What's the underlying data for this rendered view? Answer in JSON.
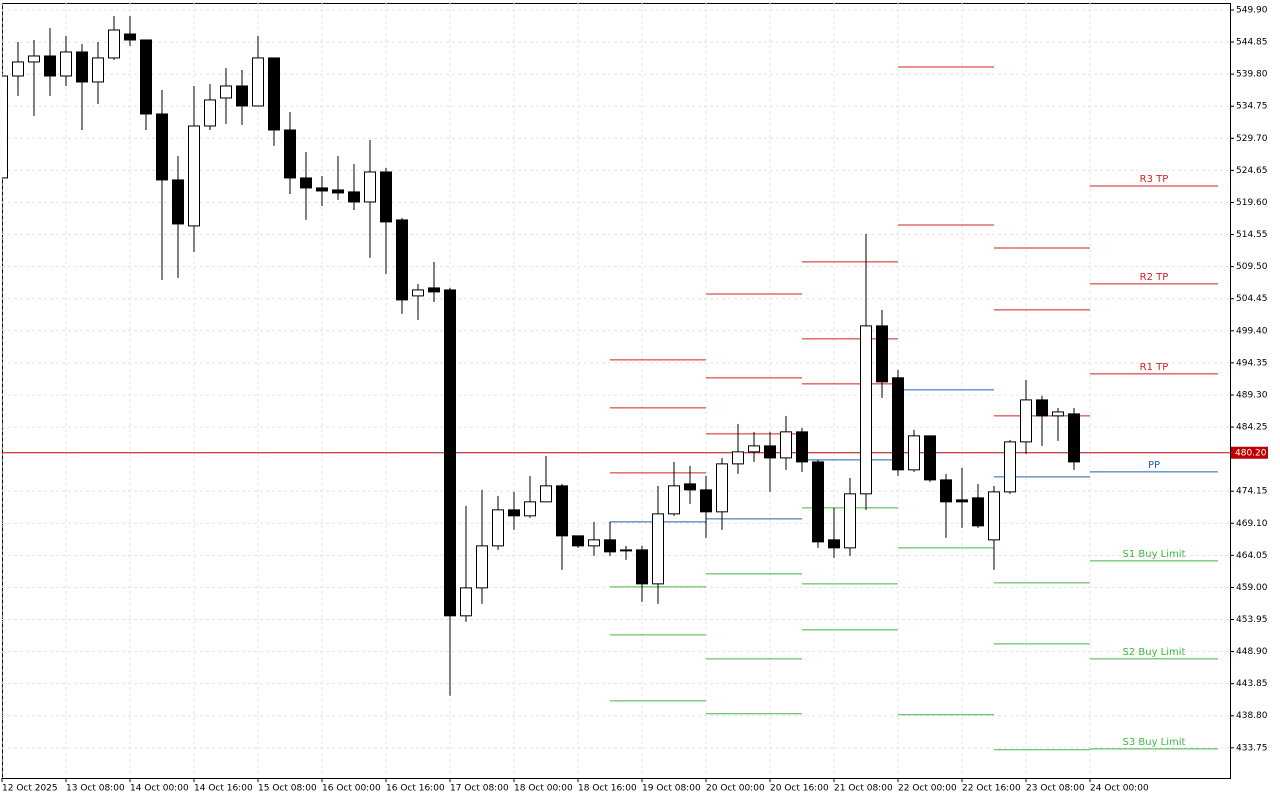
{
  "chart_data": {
    "type": "candlestick",
    "categories": [
      "12 Oct 2025",
      null,
      null,
      null,
      "13 Oct 08:00",
      null,
      null,
      null,
      "14 Oct 00:00",
      null,
      null,
      null,
      "14 Oct 16:00",
      null,
      null,
      null,
      "15 Oct 08:00",
      null,
      null,
      null,
      "16 Oct 00:00",
      null,
      null,
      null,
      "16 Oct 16:00",
      null,
      null,
      null,
      "17 Oct 08:00",
      null,
      null,
      null,
      "18 Oct 00:00",
      null,
      null,
      null,
      "18 Oct 16:00",
      null,
      null,
      null,
      "19 Oct 08:00",
      null,
      null,
      null,
      "20 Oct 00:00",
      null,
      null,
      null,
      "20 Oct 16:00",
      null,
      null,
      null,
      "21 Oct 08:00",
      null,
      null,
      null,
      "22 Oct 00:00",
      null,
      null,
      null,
      "22 Oct 16:00",
      null,
      null,
      null,
      "23 Oct 08:00",
      null,
      null,
      null,
      "24 Oct 00:00"
    ],
    "open": [
      523.46,
      539.51,
      541.72,
      542.66,
      539.51,
      543.29,
      538.57,
      542.35,
      546.12,
      545.18,
      533.53,
      523.15,
      515.91,
      531.64,
      536.05,
      537.94,
      534.79,
      542.35,
      531.01,
      523.46,
      521.89,
      521.57,
      521.26,
      519.68,
      524.4,
      516.85,
      504.89,
      506.15,
      505.83,
      454.53,
      458.93,
      465.54,
      471.21,
      470.27,
      472.47,
      474.99,
      467.12,
      465.54,
      466.49,
      464.91,
      464.91,
      459.56,
      470.58,
      475.3,
      474.36,
      470.9,
      478.45,
      480.34,
      481.28,
      479.39,
      483.49,
      478.76,
      466.49,
      465.23,
      473.73,
      500.17,
      492.0,
      477.51,
      482.86,
      475.93,
      472.78,
      473.1,
      466.49,
      474.04,
      481.91,
      488.52,
      486.01,
      486.32,
      null
    ],
    "high": [
      539.51,
      544.86,
      545.18,
      547.07,
      545.81,
      544.55,
      544.86,
      548.96,
      548.96,
      545.18,
      537.31,
      526.92,
      537.94,
      538.25,
      540.77,
      540.46,
      545.81,
      542.35,
      533.85,
      527.55,
      523.77,
      526.92,
      525.66,
      529.44,
      525.03,
      517.17,
      506.78,
      510.24,
      506.15,
      471.84,
      474.36,
      473.41,
      474.04,
      476.56,
      479.71,
      475.3,
      467.12,
      469.32,
      469.32,
      465.54,
      465.54,
      474.99,
      478.76,
      478.13,
      476.56,
      479.39,
      484.74,
      483.49,
      483.49,
      486.01,
      484.12,
      479.08,
      471.53,
      476.25,
      514.65,
      502.69,
      493.24,
      483.8,
      482.86,
      476.87,
      477.82,
      475.3,
      474.99,
      482.23,
      491.67,
      489.15,
      487.26,
      487.26,
      null
    ],
    "low": [
      523.46,
      536.37,
      533.22,
      536.37,
      537.94,
      531.01,
      535.11,
      542.03,
      544.23,
      531.01,
      507.41,
      507.72,
      511.81,
      531.01,
      531.96,
      531.8,
      534.79,
      528.5,
      520.94,
      516.85,
      519.05,
      520.0,
      518.42,
      510.87,
      508.35,
      502.06,
      501.11,
      503.94,
      441.94,
      453.58,
      456.42,
      464.91,
      468.06,
      469.95,
      472.47,
      461.77,
      465.23,
      463.97,
      463.97,
      463.34,
      456.73,
      456.42,
      470.27,
      472.15,
      466.8,
      468.06,
      476.87,
      478.76,
      474.04,
      477.5,
      477.19,
      465.23,
      463.66,
      463.97,
      471.21,
      488.84,
      476.56,
      477.19,
      475.62,
      466.8,
      468.38,
      468.38,
      461.77,
      473.73,
      480.02,
      481.28,
      482.07,
      477.5,
      null
    ],
    "close": [
      539.51,
      541.72,
      542.66,
      539.51,
      543.29,
      538.57,
      542.35,
      546.75,
      545.18,
      533.53,
      523.15,
      516.22,
      531.64,
      535.74,
      537.94,
      534.79,
      542.35,
      531.01,
      523.46,
      521.89,
      521.41,
      521.1,
      519.68,
      524.4,
      516.54,
      504.26,
      505.83,
      505.52,
      454.53,
      458.93,
      465.54,
      471.21,
      470.27,
      472.47,
      474.99,
      467.12,
      465.54,
      466.49,
      464.6,
      464.75,
      459.56,
      470.58,
      474.99,
      474.36,
      470.9,
      478.45,
      480.34,
      481.28,
      479.39,
      483.49,
      478.76,
      466.17,
      465.23,
      473.73,
      500.17,
      491.36,
      477.51,
      482.86,
      475.93,
      472.47,
      472.47,
      468.69,
      474.04,
      481.91,
      488.52,
      486.01,
      486.63,
      478.76,
      null
    ],
    "up_color": "#ffffff",
    "down_color": "#000000",
    "wick_color": "#000000",
    "ylim": [
      429.0,
      551.0
    ],
    "yticks": [
      {
        "value": 549.9,
        "label": "549.90"
      },
      {
        "value": 544.85,
        "label": "544.85"
      },
      {
        "value": 539.8,
        "label": "539.80"
      },
      {
        "value": 534.75,
        "label": "534.75"
      },
      {
        "value": 529.7,
        "label": "529.70"
      },
      {
        "value": 524.65,
        "label": "524.65"
      },
      {
        "value": 519.6,
        "label": "519.60"
      },
      {
        "value": 514.55,
        "label": "514.55"
      },
      {
        "value": 509.5,
        "label": "509.50"
      },
      {
        "value": 504.45,
        "label": "504.45"
      },
      {
        "value": 499.4,
        "label": "499.40"
      },
      {
        "value": 494.35,
        "label": "494.35"
      },
      {
        "value": 489.3,
        "label": "489.30"
      },
      {
        "value": 484.25,
        "label": "484.25"
      },
      {
        "value": 474.15,
        "label": "474.15"
      },
      {
        "value": 469.1,
        "label": "469.10"
      },
      {
        "value": 464.05,
        "label": "464.05"
      },
      {
        "value": 459,
        "label": "459.00"
      },
      {
        "value": 453.95,
        "label": "453.95"
      },
      {
        "value": 448.9,
        "label": "448.90"
      },
      {
        "value": 443.85,
        "label": "443.85"
      },
      {
        "value": 438.8,
        "label": "438.80"
      },
      {
        "value": 433.75,
        "label": "433.75"
      }
    ],
    "grid": true,
    "current_price": {
      "value": 480.2,
      "label": "480.20",
      "color": "#c00000"
    },
    "levels": [
      {
        "resistance": [
          477.03,
          487.26,
          494.82
        ],
        "pivot": 469.32,
        "support": [
          459.09,
          451.54,
          441.15
        ]
      },
      {
        "resistance": [
          483.17,
          491.98,
          505.2
        ],
        "pivot": 469.79,
        "support": [
          461.14,
          447.76,
          439.11
        ]
      },
      {
        "resistance": [
          491.04,
          498.12,
          510.24
        ],
        "pivot": 479.08,
        "support": [
          471.53,
          459.56,
          452.32
        ]
      },
      {
        "resistance": [
          516.06,
          540.93
        ],
        "pivot": 490.1,
        "support": [
          465.23,
          438.95
        ]
      },
      {
        "resistance": [
          486.01,
          502.69,
          512.44
        ],
        "pivot": 476.4,
        "support": [
          459.72,
          450.12,
          433.44
        ]
      },
      {
        "resistance": [
          492.61,
          506.78,
          522.2
        ],
        "pivot": 477.19,
        "support": [
          463.18,
          447.76,
          433.59
        ]
      }
    ],
    "level_labels": {
      "resistance": [
        "R1 TP",
        "R2 TP",
        "R3 TP"
      ],
      "pivot": "PP",
      "support": [
        "S1 Buy Limit",
        "S2 Buy Limit",
        "S3 Buy Limit"
      ]
    },
    "resistance_color": "#d42020",
    "pivot_color": "#2060b0",
    "support_color": "#40b840"
  }
}
